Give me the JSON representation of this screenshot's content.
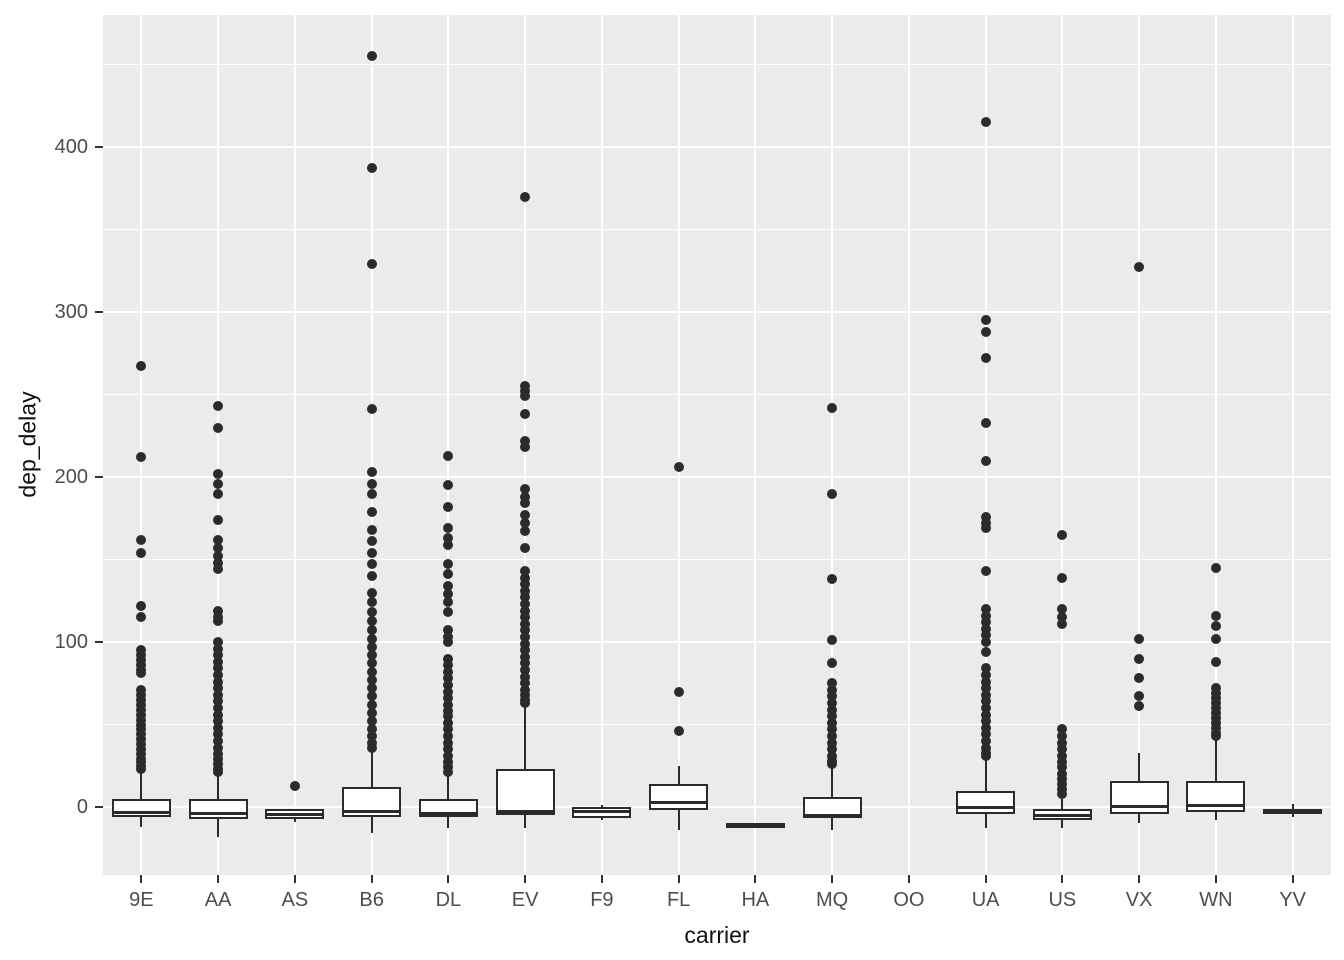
{
  "style": {
    "page_bg": "#ffffff",
    "panel_bg": "#ebebeb",
    "grid_color": "#ffffff",
    "box_fill": "#ffffff",
    "stroke_color": "#2b2b2b",
    "outlier_color": "#2b2b2b",
    "tick_label_color": "#4d4d4d",
    "axis_title_color": "#111111"
  },
  "chart_data": {
    "type": "boxplot",
    "title": "",
    "xlabel": "carrier",
    "ylabel": "dep_delay",
    "grid": true,
    "legend": false,
    "x_categories": [
      "9E",
      "AA",
      "AS",
      "B6",
      "DL",
      "EV",
      "F9",
      "FL",
      "HA",
      "MQ",
      "OO",
      "UA",
      "US",
      "VX",
      "WN",
      "YV"
    ],
    "y_ticks": [
      0,
      100,
      200,
      300,
      400
    ],
    "y_minor_ticks": [
      50,
      150,
      250,
      350,
      450
    ],
    "ylim": [
      -41.2,
      480
    ],
    "series": [
      {
        "carrier": "9E",
        "stats": {
          "whisker_low": -12,
          "q1": -6,
          "median": -3.5,
          "q3": 5,
          "whisker_high": 21
        },
        "outliers": [
          267,
          212,
          162,
          154,
          122,
          115,
          95,
          92,
          89,
          86,
          83,
          81,
          71,
          68,
          65,
          62,
          59,
          56,
          53,
          50,
          47,
          44,
          41,
          38,
          35,
          32,
          29,
          27,
          25,
          23
        ]
      },
      {
        "carrier": "AA",
        "stats": {
          "whisker_low": -18,
          "q1": -7,
          "median": -4,
          "q3": 5,
          "whisker_high": 20
        },
        "outliers": [
          243,
          230,
          202,
          196,
          190,
          174,
          162,
          157,
          152,
          148,
          144,
          119,
          115,
          113,
          100,
          96,
          92,
          88,
          84,
          80,
          76,
          72,
          68,
          64,
          60,
          56,
          52,
          48,
          44,
          40,
          36,
          32,
          29,
          26,
          23,
          21
        ]
      },
      {
        "carrier": "AS",
        "stats": {
          "whisker_low": -9,
          "q1": -7,
          "median": -4.5,
          "q3": -1.5,
          "whisker_high": -1
        },
        "outliers": [
          13
        ]
      },
      {
        "carrier": "B6",
        "stats": {
          "whisker_low": -16,
          "q1": -6,
          "median": -3,
          "q3": 12,
          "whisker_high": 34
        },
        "outliers": [
          455,
          387,
          329,
          241,
          203,
          196,
          190,
          179,
          168,
          161,
          154,
          147,
          140,
          130,
          124,
          118,
          113,
          107,
          102,
          97,
          92,
          87,
          82,
          77,
          72,
          67,
          62,
          57,
          52,
          47,
          43,
          39,
          36
        ]
      },
      {
        "carrier": "DL",
        "stats": {
          "whisker_low": -13,
          "q1": -6,
          "median": -4,
          "q3": 5,
          "whisker_high": 19
        },
        "outliers": [
          213,
          195,
          182,
          169,
          163,
          159,
          147,
          141,
          134,
          129,
          124,
          118,
          107,
          103,
          100,
          90,
          86,
          82,
          78,
          74,
          70,
          66,
          62,
          58,
          55,
          51,
          47,
          43,
          39,
          35,
          31,
          27,
          24,
          21
        ]
      },
      {
        "carrier": "EV",
        "stats": {
          "whisker_low": -13,
          "q1": -5,
          "median": -3,
          "q3": 23,
          "whisker_high": 61
        },
        "outliers": [
          370,
          255,
          252,
          249,
          238,
          222,
          218,
          193,
          188,
          184,
          177,
          172,
          167,
          157,
          143,
          139,
          135,
          131,
          127,
          123,
          119,
          115,
          111,
          107,
          103,
          99,
          95,
          91,
          87,
          83,
          79,
          75,
          71,
          68,
          65,
          63
        ]
      },
      {
        "carrier": "F9",
        "stats": {
          "whisker_low": -8,
          "q1": -6.5,
          "median": -3,
          "q3": 0,
          "whisker_high": 1
        },
        "outliers": []
      },
      {
        "carrier": "FL",
        "stats": {
          "whisker_low": -14,
          "q1": -2,
          "median": 3,
          "q3": 14,
          "whisker_high": 25
        },
        "outliers": [
          206,
          70,
          46
        ]
      },
      {
        "carrier": "HA",
        "stats": {
          "whisker_low": -11,
          "q1": -11,
          "median": -10.5,
          "q3": -10,
          "whisker_high": -10
        },
        "outliers": []
      },
      {
        "carrier": "MQ",
        "stats": {
          "whisker_low": -14,
          "q1": -6.5,
          "median": -5,
          "q3": 6,
          "whisker_high": 24
        },
        "outliers": [
          242,
          190,
          138,
          101,
          87,
          75,
          71,
          67,
          63,
          59,
          55,
          51,
          47,
          43,
          39,
          35,
          31,
          28,
          26
        ]
      },
      {
        "carrier": "OO",
        "stats": null,
        "outliers": []
      },
      {
        "carrier": "UA",
        "stats": {
          "whisker_low": -13,
          "q1": -4,
          "median": 0,
          "q3": 10,
          "whisker_high": 29
        },
        "outliers": [
          415,
          295,
          288,
          272,
          233,
          210,
          176,
          172,
          169,
          143,
          120,
          116,
          112,
          108,
          104,
          100,
          94,
          84,
          80,
          76,
          72,
          68,
          64,
          60,
          56,
          52,
          48,
          44,
          40,
          36,
          33,
          31
        ]
      },
      {
        "carrier": "US",
        "stats": {
          "whisker_low": -13,
          "q1": -8,
          "median": -5,
          "q3": -1,
          "whisker_high": 5
        },
        "outliers": [
          165,
          139,
          120,
          115,
          111,
          47,
          43,
          39,
          35,
          31,
          27,
          24,
          20,
          17,
          14,
          11,
          8
        ]
      },
      {
        "carrier": "VX",
        "stats": {
          "whisker_low": -9.5,
          "q1": -4,
          "median": 0.5,
          "q3": 16,
          "whisker_high": 33
        },
        "outliers": [
          327,
          102,
          90,
          78,
          67,
          61
        ]
      },
      {
        "carrier": "WN",
        "stats": {
          "whisker_low": -8,
          "q1": -3,
          "median": 1,
          "q3": 16,
          "whisker_high": 42
        },
        "outliers": [
          145,
          116,
          110,
          102,
          88,
          72,
          69,
          66,
          63,
          60,
          57,
          54,
          51,
          48,
          45,
          43
        ]
      },
      {
        "carrier": "YV",
        "stats": {
          "whisker_low": -6,
          "q1": -4.5,
          "median": -3,
          "q3": -1,
          "whisker_high": 2
        },
        "outliers": []
      }
    ]
  }
}
